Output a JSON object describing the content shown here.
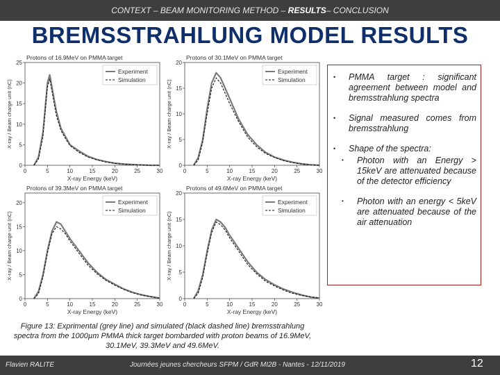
{
  "header": {
    "context_prefix": "CONTEXT – BEAM MONITORING METHOD – ",
    "current_section": "RESULTS",
    "context_suffix": "– CONCLUSION"
  },
  "slide": {
    "title": "BREMSSTRAHLUNG MODEL RESULTS"
  },
  "bullets": {
    "b1": "PMMA target : significant agreement between model and bremsstrahlung spectra",
    "b2": "Signal measured comes from bremsstrahlung",
    "b3": "Shape of the spectra:",
    "s1": "Photon with an Energy > 15keV are attenuated because of the detector efficiency",
    "s2": "Photon with an energy < 5keV are attenuated because of the air attenuation"
  },
  "caption": "Figure 13: Exprimental (grey line) and simulated (black dashed line) bremsstrahlung spectra from the 1000µm PMMA thick target bombarded with proton beams of 16.9MeV, 30.1MeV, 39.3MeV and 49.6MeV.",
  "footer": {
    "author": "Flavien RALITE",
    "conference": "Journées jeunes chercheurs SFPM / GdR MI2B - Nantes - 12/11/2019",
    "page": "12"
  },
  "colors": {
    "header_bg": "#3e3e3e",
    "title": "#0f2f6b",
    "box_border": "#a8201a",
    "experiment": "#7a7a7a",
    "simulation": "#111111"
  },
  "chart_data": [
    {
      "type": "line",
      "title": "Protons of 16.9MeV on PMMA target",
      "xlabel": "X-ray Energy (keV)",
      "ylabel": "X-ray / Beam charge unit (nC)",
      "xlim": [
        0,
        30
      ],
      "ylim": [
        0,
        25
      ],
      "xticks": [
        "0",
        "5",
        "10",
        "15",
        "20",
        "25",
        "30"
      ],
      "yticks": [
        "0",
        "5",
        "10",
        "15",
        "20",
        "25"
      ],
      "legend": [
        "Experiment",
        "Simulation"
      ],
      "legend_position": "top-right",
      "series": [
        {
          "name": "Experiment",
          "style": "solid grey",
          "x": [
            2,
            3,
            4,
            4.5,
            5,
            5.5,
            6,
            6.5,
            7,
            8,
            9,
            10,
            12,
            14,
            16,
            18,
            20,
            22,
            25,
            28,
            30
          ],
          "y": [
            0,
            2,
            8,
            14,
            20,
            22,
            19,
            16,
            13,
            9,
            7,
            5,
            3.5,
            2.2,
            1.4,
            0.9,
            0.5,
            0.3,
            0.1,
            0,
            0
          ]
        },
        {
          "name": "Simulation",
          "style": "dashed black",
          "x": [
            2,
            3,
            4,
            4.5,
            5,
            5.5,
            6,
            6.5,
            7,
            8,
            9,
            10,
            12,
            14,
            16,
            18,
            20,
            22,
            25,
            28,
            30
          ],
          "y": [
            0,
            1.5,
            7,
            13,
            19,
            21,
            18,
            15,
            12,
            8.5,
            6.5,
            4.8,
            3.2,
            2,
            1.3,
            0.8,
            0.45,
            0.25,
            0.1,
            0,
            0
          ]
        }
      ]
    },
    {
      "type": "line",
      "title": "Protons of 30.1MeV on PMMA target",
      "xlabel": "X-ray Energy (keV)",
      "ylabel": "X-ray / Beam charge unit (nC)",
      "xlim": [
        0,
        30
      ],
      "ylim": [
        0,
        20
      ],
      "xticks": [
        "0",
        "5",
        "10",
        "15",
        "20",
        "25",
        "30"
      ],
      "yticks": [
        "0",
        "5",
        "10",
        "15",
        "20"
      ],
      "legend": [
        "Experiment",
        "Simulation"
      ],
      "legend_position": "top-right",
      "series": [
        {
          "name": "Experiment",
          "style": "solid grey",
          "x": [
            2,
            3,
            4,
            5,
            6,
            7,
            8,
            9,
            10,
            12,
            14,
            16,
            18,
            20,
            22,
            24,
            26,
            28,
            30
          ],
          "y": [
            0,
            1.5,
            5,
            11,
            16,
            18,
            17,
            15,
            13,
            9,
            6,
            4,
            2.5,
            1.6,
            1,
            0.6,
            0.3,
            0.1,
            0
          ]
        },
        {
          "name": "Simulation",
          "style": "dashed black",
          "x": [
            2,
            3,
            4,
            5,
            6,
            7,
            8,
            9,
            10,
            12,
            14,
            16,
            18,
            20,
            22,
            24,
            26,
            28,
            30
          ],
          "y": [
            0,
            1,
            4.5,
            10,
            15,
            17,
            16,
            14,
            12,
            8.5,
            5.5,
            3.6,
            2.3,
            1.5,
            0.9,
            0.5,
            0.25,
            0.1,
            0
          ]
        }
      ]
    },
    {
      "type": "line",
      "title": "Protons of 39.3MeV on PMMA target",
      "xlabel": "X-ray Energy (keV)",
      "ylabel": "X-ray / Beam charge unit (nC)",
      "xlim": [
        0,
        30
      ],
      "ylim": [
        0,
        22
      ],
      "xticks": [
        "0",
        "5",
        "10",
        "15",
        "20",
        "25",
        "30"
      ],
      "yticks": [
        "0",
        "5",
        "10",
        "15",
        "20"
      ],
      "legend": [
        "Experiment",
        "Simulation"
      ],
      "legend_position": "top-right",
      "series": [
        {
          "name": "Experiment",
          "style": "solid grey",
          "x": [
            2,
            3,
            4,
            5,
            6,
            7,
            8,
            9,
            10,
            12,
            14,
            16,
            18,
            20,
            22,
            24,
            26,
            28,
            30
          ],
          "y": [
            0,
            1.5,
            5,
            10,
            14,
            16,
            15.5,
            14,
            12.5,
            10,
            7.5,
            5.5,
            4,
            3,
            2,
            1.3,
            0.8,
            0.4,
            0.1
          ]
        },
        {
          "name": "Simulation",
          "style": "dashed black",
          "x": [
            2,
            3,
            4,
            5,
            6,
            7,
            8,
            9,
            10,
            12,
            14,
            16,
            18,
            20,
            22,
            24,
            26,
            28,
            30
          ],
          "y": [
            0,
            1,
            4.5,
            9.5,
            13.5,
            15,
            14.5,
            13.5,
            12,
            9.5,
            7,
            5.2,
            3.8,
            2.8,
            1.9,
            1.2,
            0.7,
            0.4,
            0.1
          ]
        }
      ]
    },
    {
      "type": "line",
      "title": "Protons of 49.6MeV on PMMA target",
      "xlabel": "X-ray Energy (keV)",
      "ylabel": "X-ray / Beam charge unit (nC)",
      "xlim": [
        0,
        30
      ],
      "ylim": [
        0,
        20
      ],
      "xticks": [
        "0",
        "5",
        "10",
        "15",
        "20",
        "25",
        "30"
      ],
      "yticks": [
        "0",
        "5",
        "10",
        "15",
        "20"
      ],
      "legend": [
        "Experiment",
        "Simulation"
      ],
      "legend_position": "top-right",
      "series": [
        {
          "name": "Experiment",
          "style": "solid grey",
          "x": [
            2,
            3,
            4,
            5,
            6,
            7,
            8,
            9,
            10,
            12,
            14,
            16,
            18,
            20,
            22,
            24,
            26,
            28,
            30
          ],
          "y": [
            0,
            1.5,
            4.5,
            9,
            13,
            15,
            14.5,
            13.5,
            12,
            9.5,
            7,
            5,
            3.6,
            2.6,
            1.8,
            1.2,
            0.7,
            0.3,
            0.1
          ]
        },
        {
          "name": "Simulation",
          "style": "dashed black",
          "x": [
            2,
            3,
            4,
            5,
            6,
            7,
            8,
            9,
            10,
            12,
            14,
            16,
            18,
            20,
            22,
            24,
            26,
            28,
            30
          ],
          "y": [
            0,
            1,
            4,
            8.5,
            12.5,
            14.5,
            14,
            13,
            11.5,
            9,
            6.5,
            4.7,
            3.3,
            2.4,
            1.6,
            1,
            0.6,
            0.3,
            0.1
          ]
        }
      ]
    }
  ]
}
